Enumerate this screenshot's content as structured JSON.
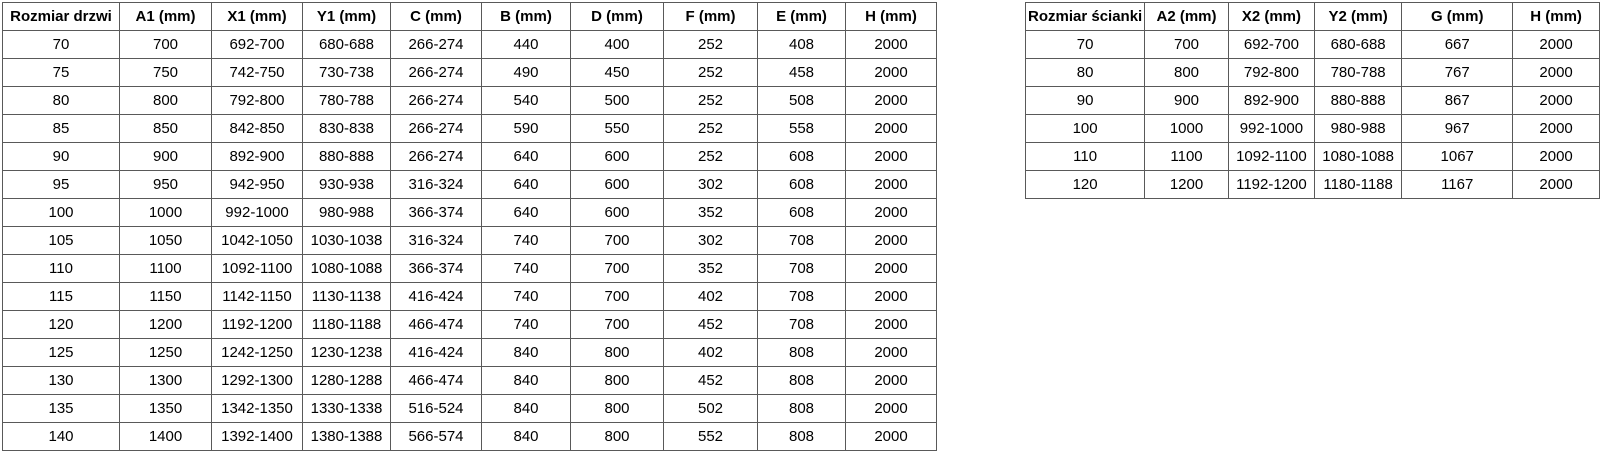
{
  "colors": {
    "background": "#ffffff",
    "border": "#595959",
    "text": "#000000"
  },
  "tables": [
    {
      "title": "door sizes",
      "headers": [
        "Rozmiar drzwi",
        "A1 (mm)",
        "X1 (mm)",
        "Y1 (mm)",
        "C (mm)",
        "B (mm)",
        "D (mm)",
        "F (mm)",
        "E (mm)",
        "H (mm)"
      ],
      "rows": [
        [
          "70",
          "700",
          "692-700",
          "680-688",
          "266-274",
          "440",
          "400",
          "252",
          "408",
          "2000"
        ],
        [
          "75",
          "750",
          "742-750",
          "730-738",
          "266-274",
          "490",
          "450",
          "252",
          "458",
          "2000"
        ],
        [
          "80",
          "800",
          "792-800",
          "780-788",
          "266-274",
          "540",
          "500",
          "252",
          "508",
          "2000"
        ],
        [
          "85",
          "850",
          "842-850",
          "830-838",
          "266-274",
          "590",
          "550",
          "252",
          "558",
          "2000"
        ],
        [
          "90",
          "900",
          "892-900",
          "880-888",
          "266-274",
          "640",
          "600",
          "252",
          "608",
          "2000"
        ],
        [
          "95",
          "950",
          "942-950",
          "930-938",
          "316-324",
          "640",
          "600",
          "302",
          "608",
          "2000"
        ],
        [
          "100",
          "1000",
          "992-1000",
          "980-988",
          "366-374",
          "640",
          "600",
          "352",
          "608",
          "2000"
        ],
        [
          "105",
          "1050",
          "1042-1050",
          "1030-1038",
          "316-324",
          "740",
          "700",
          "302",
          "708",
          "2000"
        ],
        [
          "110",
          "1100",
          "1092-1100",
          "1080-1088",
          "366-374",
          "740",
          "700",
          "352",
          "708",
          "2000"
        ],
        [
          "115",
          "1150",
          "1142-1150",
          "1130-1138",
          "416-424",
          "740",
          "700",
          "402",
          "708",
          "2000"
        ],
        [
          "120",
          "1200",
          "1192-1200",
          "1180-1188",
          "466-474",
          "740",
          "700",
          "452",
          "708",
          "2000"
        ],
        [
          "125",
          "1250",
          "1242-1250",
          "1230-1238",
          "416-424",
          "840",
          "800",
          "402",
          "808",
          "2000"
        ],
        [
          "130",
          "1300",
          "1292-1300",
          "1280-1288",
          "466-474",
          "840",
          "800",
          "452",
          "808",
          "2000"
        ],
        [
          "135",
          "1350",
          "1342-1350",
          "1330-1338",
          "516-524",
          "840",
          "800",
          "502",
          "808",
          "2000"
        ],
        [
          "140",
          "1400",
          "1392-1400",
          "1380-1388",
          "566-574",
          "840",
          "800",
          "552",
          "808",
          "2000"
        ]
      ]
    },
    {
      "title": "wall panel sizes",
      "headers": [
        "Rozmiar ścianki",
        "A2 (mm)",
        "X2 (mm)",
        "Y2 (mm)",
        "G (mm)",
        "H (mm)"
      ],
      "rows": [
        [
          "70",
          "700",
          "692-700",
          "680-688",
          "667",
          "2000"
        ],
        [
          "80",
          "800",
          "792-800",
          "780-788",
          "767",
          "2000"
        ],
        [
          "90",
          "900",
          "892-900",
          "880-888",
          "867",
          "2000"
        ],
        [
          "100",
          "1000",
          "992-1000",
          "980-988",
          "967",
          "2000"
        ],
        [
          "110",
          "1100",
          "1092-1100",
          "1080-1088",
          "1067",
          "2000"
        ],
        [
          "120",
          "1200",
          "1192-1200",
          "1180-1188",
          "1167",
          "2000"
        ]
      ]
    }
  ]
}
